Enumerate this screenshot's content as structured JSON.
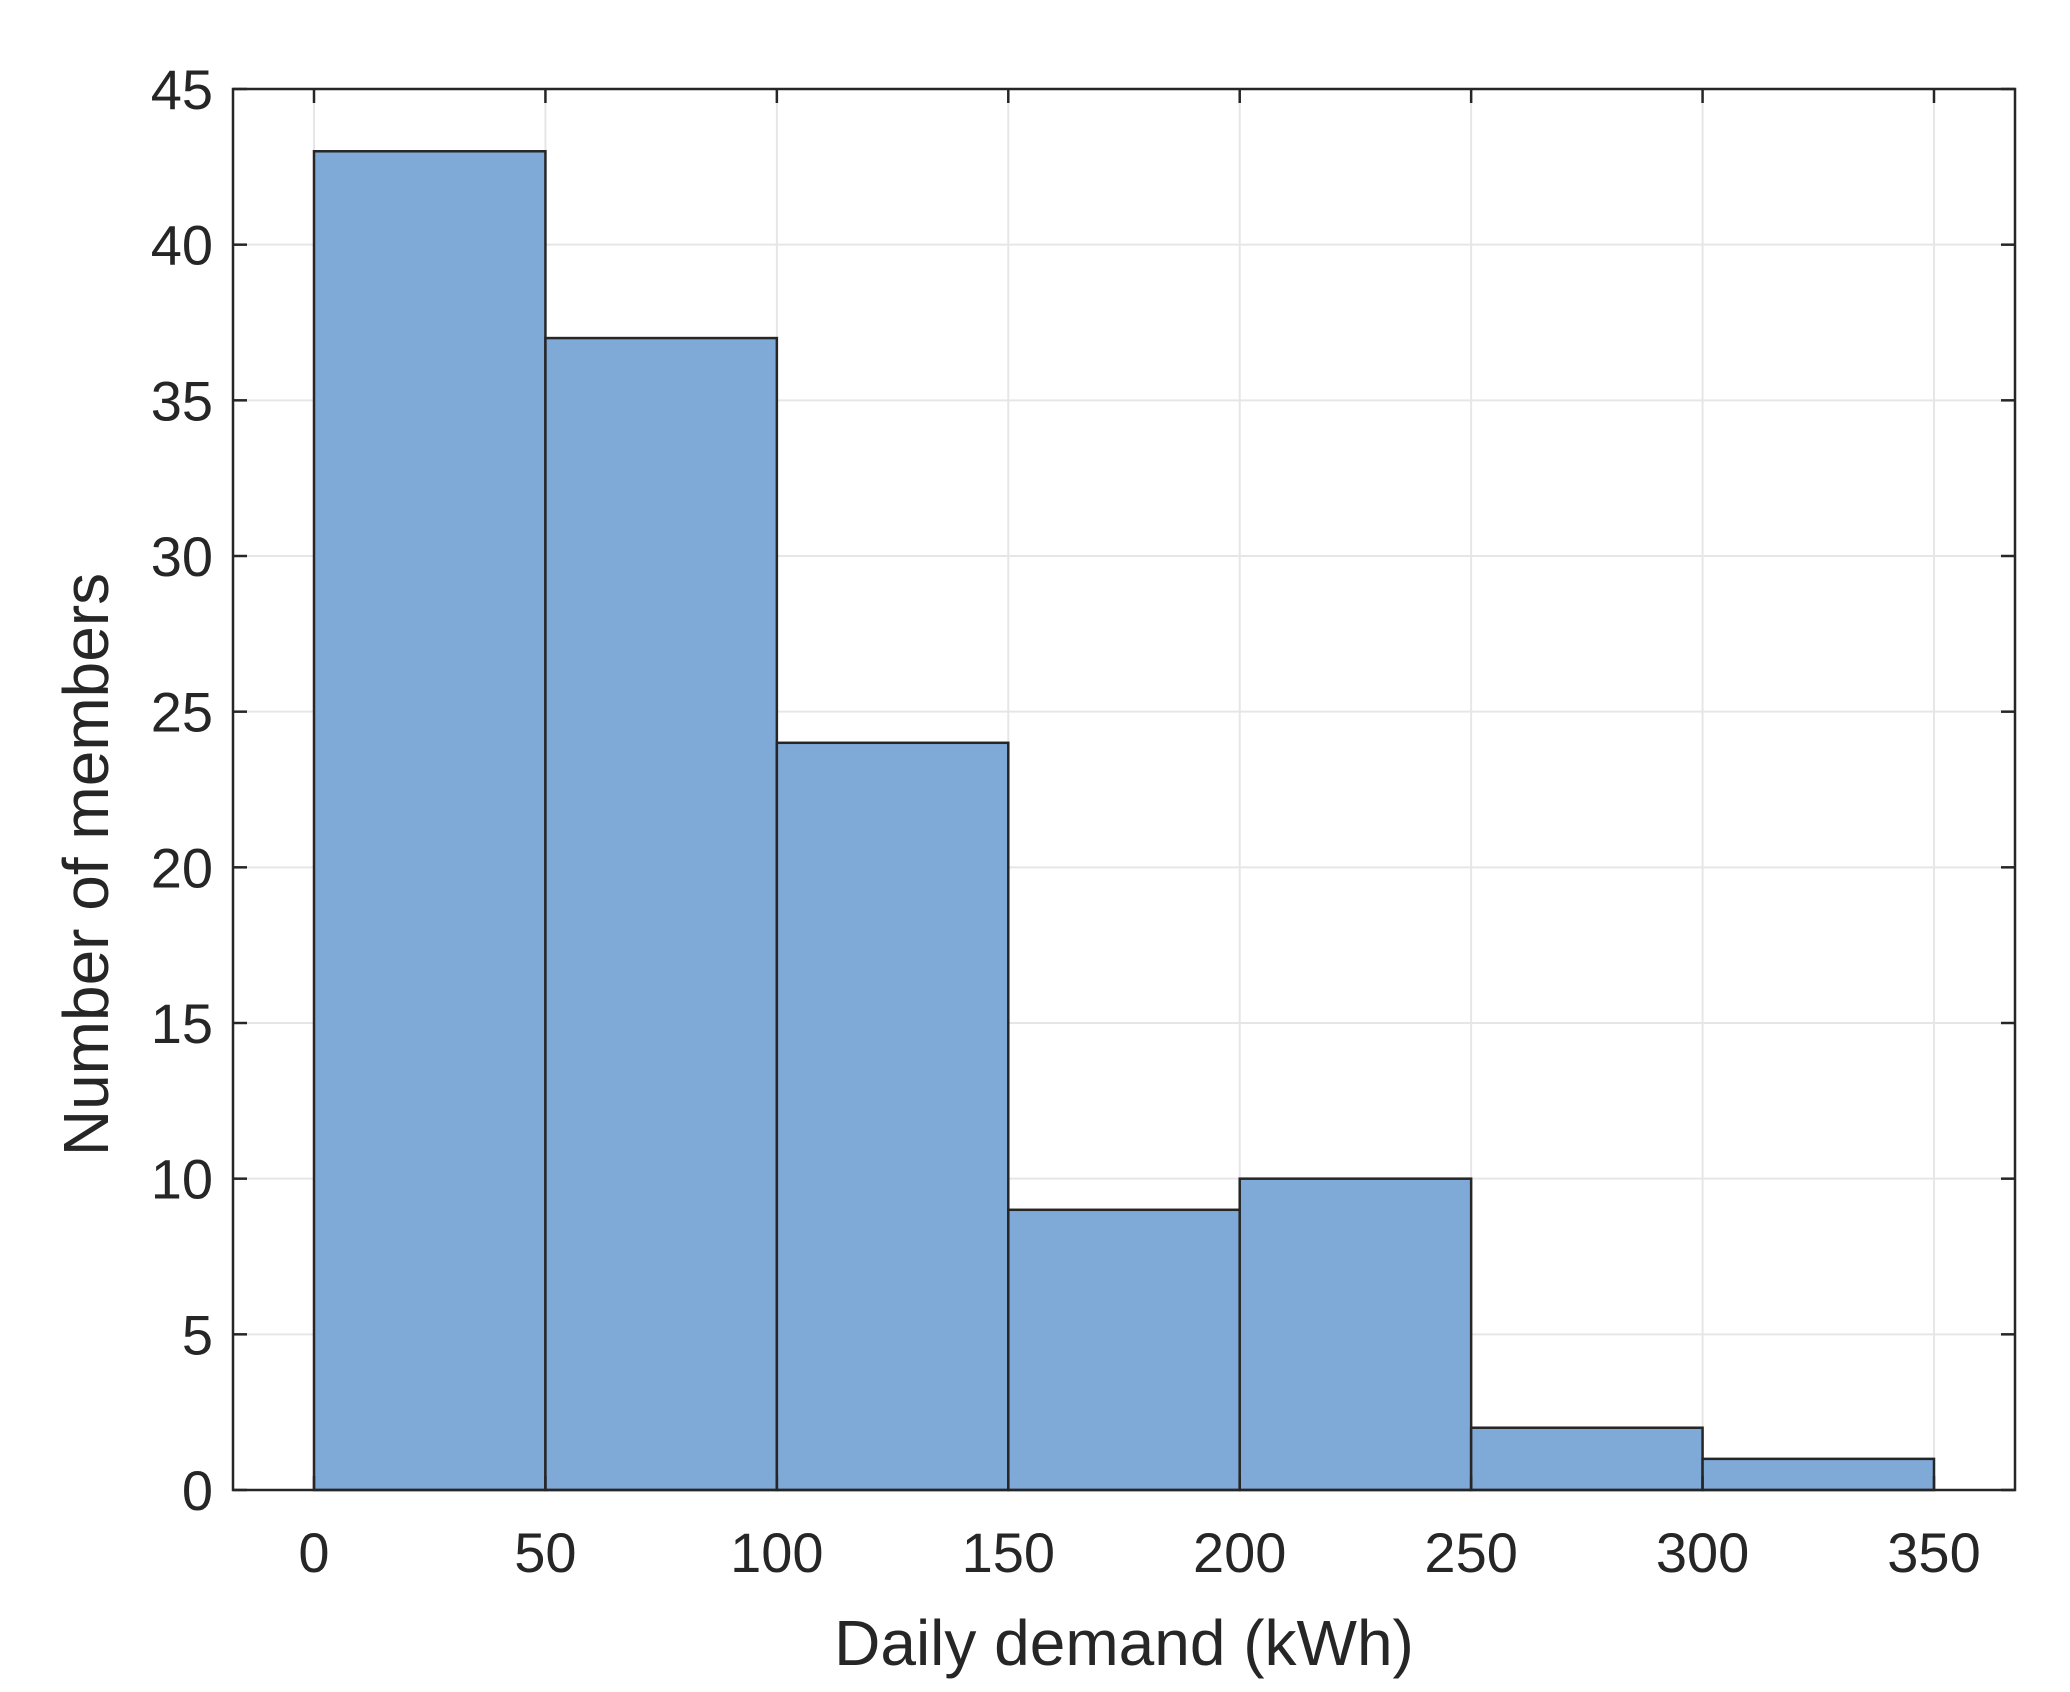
{
  "chart_data": {
    "type": "bar",
    "subtype": "histogram",
    "bin_edges": [
      0,
      50,
      100,
      150,
      200,
      250,
      300,
      350
    ],
    "values": [
      43,
      37,
      24,
      9,
      10,
      2,
      1
    ],
    "xlabel": "Daily demand (kWh)",
    "ylabel": "Number of members",
    "xlim": [
      -17.5,
      367.5
    ],
    "ylim": [
      0,
      45
    ],
    "xticks": [
      0,
      50,
      100,
      150,
      200,
      250,
      300,
      350
    ],
    "xtick_labels": [
      "0",
      "50",
      "100",
      "150",
      "200",
      "250",
      "300",
      "350"
    ],
    "yticks": [
      0,
      5,
      10,
      15,
      20,
      25,
      30,
      35,
      40,
      45
    ],
    "ytick_labels": [
      "0",
      "5",
      "10",
      "15",
      "20",
      "25",
      "30",
      "35",
      "40",
      "45"
    ],
    "grid": true,
    "bar_color": "#7faad8",
    "edge_color": "#262626",
    "grid_color": "#e6e6e6"
  }
}
